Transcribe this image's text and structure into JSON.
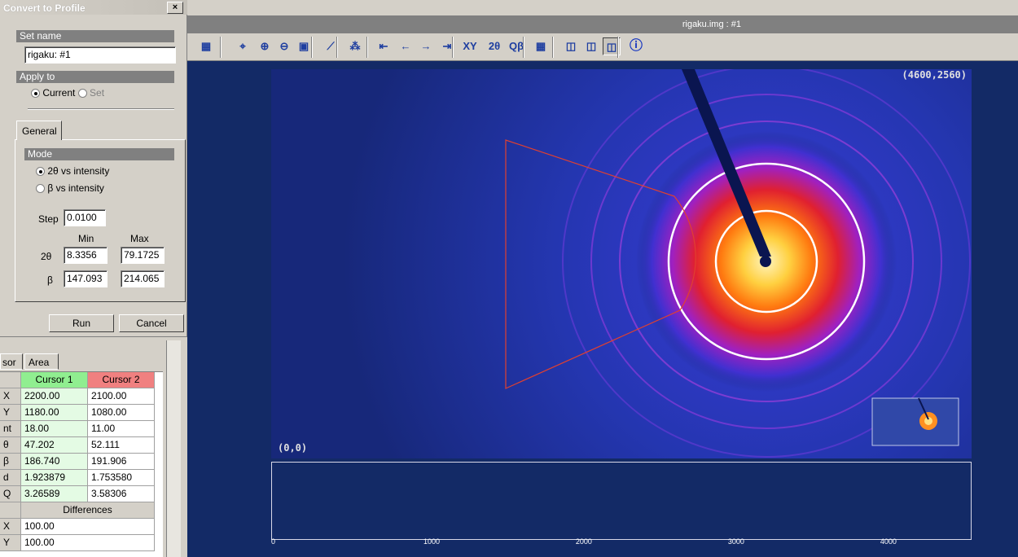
{
  "dialog": {
    "title": "Convert to Profile",
    "close": "×",
    "set_name_label": "Set name",
    "set_name_value": "rigaku: #1",
    "apply_to_label": "Apply to",
    "apply_current": "Current",
    "apply_set": "Set",
    "tab_general": "General",
    "mode_label": "Mode",
    "mode_2theta": "2θ  vs intensity",
    "mode_beta": "β  vs intensity",
    "step_label": "Step",
    "step_value": "0.0100",
    "min_label": "Min",
    "max_label": "Max",
    "row_2theta_label": "2θ",
    "row_2theta_min": "8.3356",
    "row_2theta_max": "79.1725",
    "row_beta_label": "β",
    "row_beta_min": "147.093",
    "row_beta_max": "214.065",
    "run_label": "Run",
    "cancel_label": "Cancel"
  },
  "cursor_table": {
    "tab_cursor": "sor",
    "tab_area": "Area",
    "col1": "Cursor 1",
    "col2": "Cursor 2",
    "rows": [
      {
        "label": "X",
        "c1": "2200.00",
        "c2": "2100.00"
      },
      {
        "label": "Y",
        "c1": "1180.00",
        "c2": "1080.00"
      },
      {
        "label": "nt",
        "c1": "18.00",
        "c2": "11.00"
      },
      {
        "label": "θ",
        "c1": "47.202",
        "c2": "52.111"
      },
      {
        "label": "β",
        "c1": "186.740",
        "c2": "191.906"
      },
      {
        "label": "d",
        "c1": "1.923879",
        "c2": "1.753580"
      },
      {
        "label": "Q",
        "c1": "3.26589",
        "c2": "3.58306"
      }
    ],
    "differences_label": "Differences",
    "diff_rows": [
      {
        "label": "X",
        "value": "100.00"
      },
      {
        "label": "Y",
        "value": "100.00"
      }
    ]
  },
  "viewer": {
    "title": "rigaku.img : #1",
    "coord_top_right": "(4600,2560)",
    "coord_bottom_left": "(0,0)"
  },
  "toolbar_icons": [
    "properties-icon",
    "zoom-fit-icon",
    "zoom-in-icon",
    "zoom-out-icon",
    "zoom-box-icon",
    "baseline-icon",
    "peak-icon",
    "first-icon",
    "prev-icon",
    "next-icon",
    "last-icon",
    "xy-icon",
    "2theta-beta-icon",
    "q-beta-icon",
    "grid-icon",
    "view1-icon",
    "view2-icon",
    "view3-icon",
    "info-icon"
  ],
  "profile_axis": {
    "ticks": [
      "0",
      "1000",
      "2000",
      "3000",
      "4000"
    ]
  },
  "colors": {
    "image_bg": "#1b2f8a",
    "profile_bg": "#132a66",
    "cursor1": "#90ee90",
    "cursor2": "#f08080"
  }
}
